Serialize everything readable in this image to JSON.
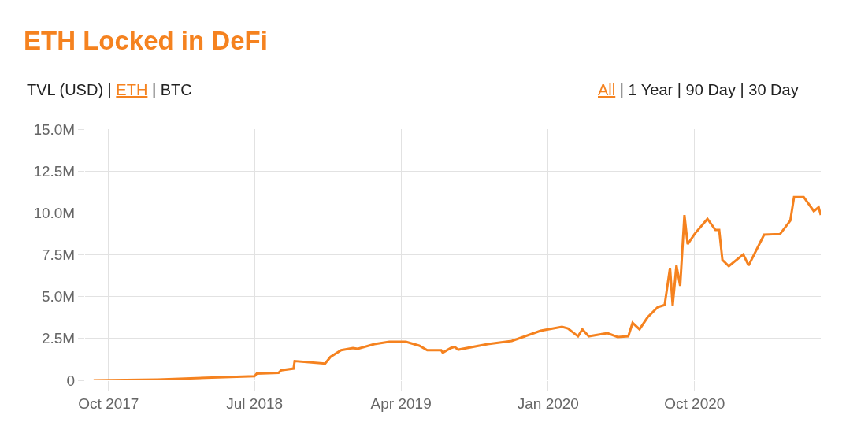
{
  "chart_data": {
    "type": "line",
    "title": "ETH Locked in DeFi",
    "annotations": [
      "TVL (USD) | ETH | BTC",
      "All | 1 Year | 90 Day | 30 Day"
    ],
    "x": [
      "2017-09-03",
      "2018-01-01",
      "2018-04-01",
      "2018-07-01",
      "2018-07-05",
      "2018-08-15",
      "2018-08-20",
      "2018-09-12",
      "2018-09-14",
      "2018-11-10",
      "2018-11-20",
      "2018-12-10",
      "2019-01-01",
      "2019-01-10",
      "2019-02-10",
      "2019-03-10",
      "2019-04-10",
      "2019-05-05",
      "2019-05-20",
      "2019-06-15",
      "2019-06-18",
      "2019-07-03",
      "2019-07-10",
      "2019-07-17",
      "2019-09-10",
      "2019-10-25",
      "2019-12-18",
      "2020-01-27",
      "2020-02-07",
      "2020-02-26",
      "2020-03-05",
      "2020-03-17",
      "2020-04-21",
      "2020-05-10",
      "2020-05-30",
      "2020-06-07",
      "2020-06-20",
      "2020-07-05",
      "2020-07-24",
      "2020-08-06",
      "2020-08-16",
      "2020-08-21",
      "2020-08-28",
      "2020-09-04",
      "2020-09-12",
      "2020-09-18",
      "2020-10-01",
      "2020-10-25",
      "2020-11-09",
      "2020-11-16",
      "2020-11-22",
      "2020-12-04",
      "2020-12-31",
      "2021-01-10",
      "2021-02-08",
      "2021-03-10",
      "2021-03-29",
      "2021-04-05",
      "2021-04-23",
      "2021-05-12",
      "2021-05-21",
      "2021-05-25"
    ],
    "series": [
      {
        "color": "#f5821f",
        "values": [
          0,
          0.05,
          0.15,
          0.25,
          0.4,
          0.45,
          0.6,
          0.7,
          1.15,
          1.0,
          1.4,
          1.8,
          1.93,
          1.88,
          2.16,
          2.3,
          2.3,
          2.07,
          1.8,
          1.8,
          1.65,
          1.93,
          2.0,
          1.83,
          2.16,
          2.35,
          2.96,
          3.2,
          3.1,
          2.63,
          3.05,
          2.63,
          2.82,
          2.59,
          2.63,
          3.43,
          3.05,
          3.76,
          4.37,
          4.5,
          6.72,
          4.47,
          6.86,
          5.64,
          9.87,
          8.13,
          8.74,
          9.64,
          8.98,
          8.98,
          7.19,
          6.82,
          7.52,
          6.86,
          8.7,
          8.74,
          9.54,
          10.95,
          10.95,
          10.1,
          10.34,
          9.87
        ]
      }
    ],
    "xlim": [
      "2017-08-18",
      "2021-05-25"
    ],
    "xticks": [
      {
        "value": "2017-10-01",
        "label": "Oct 2017"
      },
      {
        "value": "2018-07-01",
        "label": "Jul 2018"
      },
      {
        "value": "2019-04-01",
        "label": "Apr 2019"
      },
      {
        "value": "2020-01-01",
        "label": "Jan 2020"
      },
      {
        "value": "2020-10-01",
        "label": "Oct 2020"
      }
    ],
    "ylim": [
      0,
      15
    ],
    "yticks": [
      0,
      {
        "value": 2.5,
        "label": "2.5M"
      },
      {
        "value": 5,
        "label": "5.0M"
      },
      {
        "value": 7.5,
        "label": "7.5M"
      },
      {
        "value": 10,
        "label": "10.0M"
      },
      {
        "value": 12.5,
        "label": "12.5M"
      },
      {
        "value": 15,
        "label": "15.0M"
      }
    ],
    "grid": true,
    "marker": "none",
    "line_style": "solid"
  }
}
